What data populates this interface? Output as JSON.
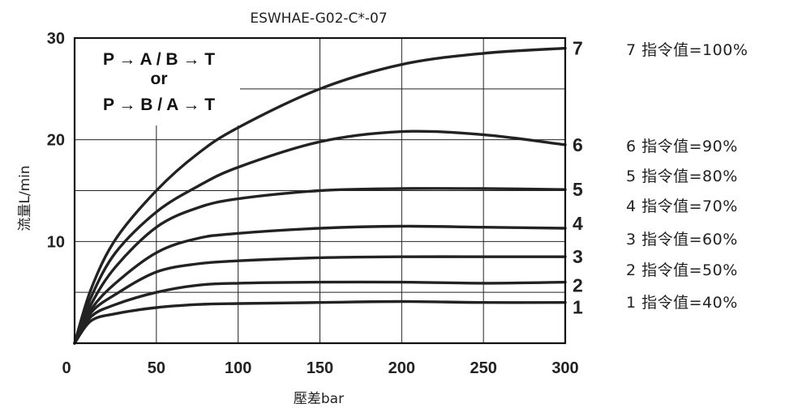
{
  "chart_data": {
    "type": "line",
    "title": "ESWHAE-G02-C*-07",
    "xlabel": "壓差bar",
    "ylabel": "流量L/min",
    "xlim": [
      0,
      300
    ],
    "ylim": [
      0,
      30
    ],
    "x_ticks": [
      0,
      50,
      100,
      150,
      200,
      250,
      300
    ],
    "y_ticks": [
      10,
      20,
      30
    ],
    "x_tick_labels": [
      "0",
      "50",
      "100",
      "150",
      "200",
      "250",
      "300"
    ],
    "y_tick_labels": [
      "10",
      "20",
      "30"
    ],
    "grid": true,
    "annotation_box": {
      "lines": [
        "P → A / B → T",
        "or",
        "P → B / A → T"
      ]
    },
    "series": [
      {
        "name": "1",
        "legend": "1 指令值=40%",
        "x": [
          0,
          10,
          25,
          50,
          75,
          100,
          150,
          200,
          250,
          300
        ],
        "y": [
          0,
          2.2,
          2.9,
          3.5,
          3.8,
          3.9,
          4.0,
          4.1,
          4.0,
          4.0
        ]
      },
      {
        "name": "2",
        "legend": "2 指令值=50%",
        "x": [
          0,
          10,
          25,
          50,
          75,
          100,
          150,
          200,
          250,
          300
        ],
        "y": [
          0,
          2.6,
          3.8,
          5.0,
          5.7,
          5.9,
          6.0,
          6.0,
          5.9,
          6.0
        ]
      },
      {
        "name": "3",
        "legend": "3 指令值=60%",
        "x": [
          0,
          10,
          25,
          50,
          75,
          100,
          150,
          200,
          250,
          300
        ],
        "y": [
          0,
          3.0,
          4.8,
          7.0,
          7.8,
          8.1,
          8.4,
          8.5,
          8.5,
          8.5
        ]
      },
      {
        "name": "4",
        "legend": "4 指令值=70%",
        "x": [
          0,
          10,
          25,
          50,
          75,
          100,
          150,
          200,
          250,
          300
        ],
        "y": [
          0,
          3.3,
          5.9,
          8.9,
          10.3,
          10.8,
          11.3,
          11.5,
          11.4,
          11.3
        ]
      },
      {
        "name": "5",
        "legend": "5 指令值=80%",
        "x": [
          0,
          10,
          25,
          50,
          75,
          100,
          150,
          200,
          250,
          300
        ],
        "y": [
          0,
          3.8,
          7.5,
          11.4,
          13.3,
          14.2,
          15.0,
          15.2,
          15.2,
          15.1
        ]
      },
      {
        "name": "6",
        "legend": "6 指令值=90%",
        "x": [
          0,
          10,
          25,
          50,
          75,
          100,
          150,
          200,
          250,
          300
        ],
        "y": [
          0,
          4.5,
          8.9,
          12.9,
          15.4,
          17.3,
          19.8,
          20.8,
          20.5,
          19.5
        ]
      },
      {
        "name": "7",
        "legend": "7 指令值=100%",
        "x": [
          0,
          10,
          25,
          50,
          75,
          100,
          150,
          200,
          250,
          300
        ],
        "y": [
          0,
          5.3,
          10.2,
          15.0,
          18.6,
          21.2,
          25.0,
          27.4,
          28.5,
          29.0
        ]
      }
    ]
  }
}
